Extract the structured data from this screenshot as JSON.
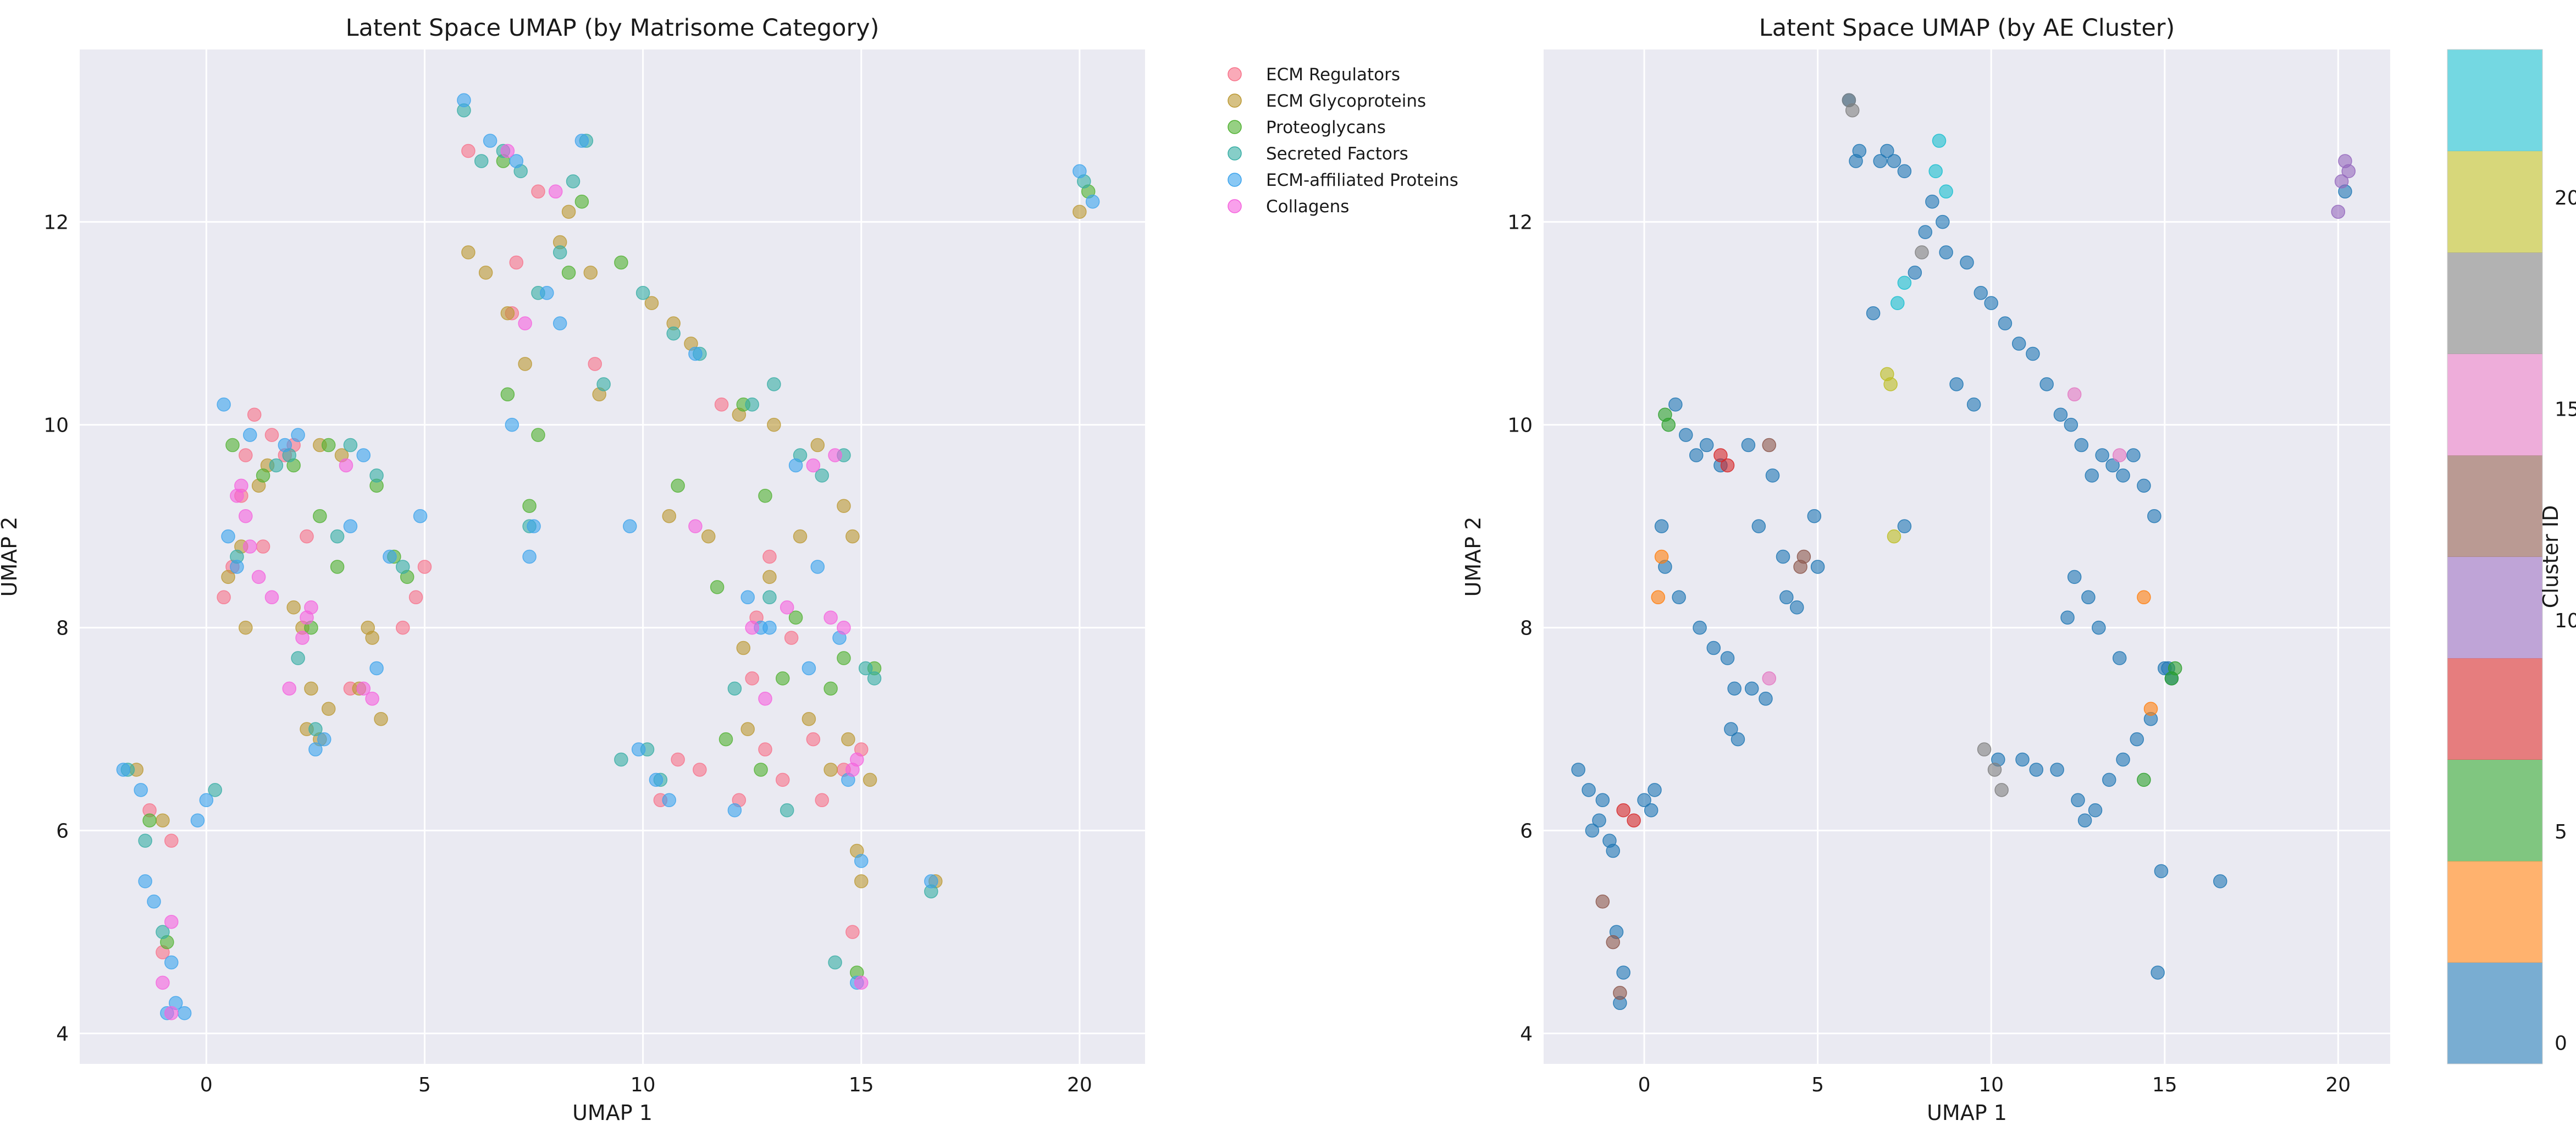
{
  "chart_data": [
    {
      "type": "scatter",
      "title": "Latent Space UMAP (by Matrisome Category)",
      "xlabel": "UMAP 1",
      "ylabel": "UMAP 2",
      "xlim": [
        -2.9,
        21.5
      ],
      "ylim": [
        3.7,
        13.7
      ],
      "xticks": [
        0,
        5,
        10,
        15,
        20
      ],
      "yticks": [
        4,
        6,
        8,
        10,
        12
      ],
      "grid": true,
      "legend_position": "outside-right",
      "series": [
        {
          "name": "ECM Regulators",
          "color": "#f77189",
          "x": [
            1.1,
            1.5,
            0.8,
            1.8,
            0.6,
            2.0,
            12.2,
            12.8,
            13.2,
            14.6,
            12.6,
            13.9,
            7.1,
            7.6,
            10.4,
            10.8,
            11.3,
            14.1,
            0.4,
            4.5,
            5.0,
            -1.0,
            -0.8,
            14.8,
            2.3,
            12.5,
            13.4,
            1.3,
            15.0,
            4.8,
            6.0,
            7.0,
            8.9,
            11.8,
            12.9,
            -1.3,
            0.9,
            3.3
          ],
          "y": [
            10.1,
            9.9,
            9.3,
            9.7,
            8.6,
            9.8,
            6.3,
            6.8,
            6.5,
            6.6,
            8.1,
            6.9,
            11.6,
            12.3,
            6.3,
            6.7,
            6.6,
            6.3,
            8.3,
            8.0,
            8.6,
            4.8,
            5.9,
            5.0,
            8.9,
            7.5,
            7.9,
            8.8,
            6.8,
            8.3,
            12.7,
            11.1,
            10.6,
            10.2,
            8.7,
            6.2,
            9.7,
            7.4
          ]
        },
        {
          "name": "ECM Glycoproteins",
          "color": "#bb9832",
          "x": [
            0.5,
            0.8,
            1.4,
            2.2,
            2.6,
            2.8,
            3.1,
            3.5,
            2.3,
            2.6,
            3.8,
            6.0,
            6.4,
            6.9,
            7.3,
            8.1,
            8.3,
            8.8,
            10.2,
            10.7,
            11.1,
            12.2,
            13.0,
            14.0,
            14.6,
            14.8,
            15.0,
            15.2,
            14.9,
            13.6,
            12.9,
            12.4,
            13.8,
            14.3,
            -1.6,
            -1.0,
            0.9,
            1.2,
            2.0,
            2.4,
            3.7,
            4.0,
            9.0,
            10.6,
            11.5,
            12.3,
            14.7,
            16.7,
            20.0
          ],
          "y": [
            8.5,
            8.8,
            9.6,
            8.0,
            9.8,
            7.2,
            9.7,
            7.4,
            7.0,
            6.9,
            7.9,
            11.7,
            11.5,
            11.1,
            10.6,
            11.8,
            12.1,
            11.5,
            11.2,
            11.0,
            10.8,
            10.1,
            10.0,
            9.8,
            9.2,
            8.9,
            5.5,
            6.5,
            5.8,
            8.9,
            8.5,
            7.0,
            7.1,
            6.6,
            6.6,
            6.1,
            8.0,
            9.4,
            8.2,
            7.4,
            8.0,
            7.1,
            10.3,
            9.1,
            8.9,
            7.8,
            6.9,
            5.5,
            12.1
          ]
        },
        {
          "name": "Proteoglycans",
          "color": "#50b131",
          "x": [
            0.6,
            1.3,
            2.0,
            2.8,
            3.0,
            3.9,
            4.3,
            6.9,
            7.4,
            7.6,
            8.3,
            9.5,
            11.7,
            12.3,
            12.8,
            13.5,
            14.3,
            14.6,
            15.3,
            14.9,
            12.7,
            11.9,
            10.8,
            13.2,
            -1.3,
            -0.9,
            2.4,
            2.6,
            4.6,
            6.8,
            8.6,
            20.2
          ],
          "y": [
            9.8,
            9.5,
            9.6,
            9.8,
            8.6,
            9.4,
            8.7,
            10.3,
            9.2,
            9.9,
            11.5,
            11.6,
            8.4,
            10.2,
            9.3,
            8.1,
            7.4,
            7.7,
            7.6,
            4.6,
            6.6,
            6.9,
            9.4,
            7.5,
            6.1,
            4.9,
            8.0,
            9.1,
            8.5,
            12.6,
            12.2,
            12.3
          ]
        },
        {
          "name": "Secreted Factors",
          "color": "#36ada4",
          "x": [
            5.9,
            6.8,
            7.2,
            7.6,
            8.1,
            8.4,
            9.1,
            10.0,
            10.7,
            11.3,
            12.5,
            13.0,
            13.6,
            14.1,
            14.6,
            15.1,
            15.3,
            12.9,
            12.1,
            10.1,
            10.4,
            3.3,
            3.9,
            4.5,
            -1.8,
            -1.4,
            -1.0,
            0.2,
            1.6,
            2.1,
            2.5,
            7.4,
            8.7,
            9.5,
            6.3,
            13.3,
            14.4,
            16.6,
            20.1,
            0.7,
            1.9,
            3.0
          ],
          "y": [
            13.1,
            12.7,
            12.5,
            11.3,
            11.7,
            12.4,
            10.4,
            11.3,
            10.9,
            10.7,
            10.2,
            10.4,
            9.7,
            9.5,
            9.7,
            7.6,
            7.5,
            8.3,
            7.4,
            6.8,
            6.5,
            9.8,
            9.5,
            8.6,
            6.6,
            5.9,
            5.0,
            6.4,
            9.6,
            7.7,
            7.0,
            9.0,
            12.8,
            6.7,
            12.6,
            6.2,
            4.7,
            5.4,
            12.4,
            8.7,
            9.7,
            8.9
          ]
        },
        {
          "name": "ECM-affiliated Proteins",
          "color": "#3ba3ec",
          "x": [
            -1.9,
            -1.5,
            -1.2,
            -0.8,
            -0.7,
            -0.5,
            0.0,
            -0.2,
            0.5,
            0.7,
            1.0,
            1.8,
            2.5,
            2.7,
            3.3,
            3.6,
            4.2,
            4.9,
            5.9,
            6.5,
            7.1,
            7.5,
            7.8,
            8.1,
            8.6,
            9.9,
            10.3,
            10.6,
            11.2,
            12.4,
            12.9,
            13.5,
            14.0,
            14.5,
            14.9,
            15.0,
            16.6,
            20.0,
            20.3,
            -1.4,
            -0.9,
            0.4,
            2.1,
            3.9,
            7.0,
            7.4,
            9.7,
            12.7,
            13.8,
            14.7,
            12.1
          ],
          "y": [
            6.6,
            6.4,
            5.3,
            4.7,
            4.3,
            4.2,
            6.3,
            6.1,
            8.9,
            8.6,
            9.9,
            9.8,
            6.8,
            6.9,
            9.0,
            9.7,
            8.7,
            9.1,
            13.2,
            12.8,
            12.6,
            9.0,
            11.3,
            11.0,
            12.8,
            6.8,
            6.5,
            6.3,
            10.7,
            8.3,
            8.0,
            9.6,
            8.6,
            7.9,
            4.5,
            5.7,
            5.5,
            12.5,
            12.2,
            5.5,
            4.2,
            10.2,
            9.9,
            7.6,
            10.0,
            8.7,
            9.0,
            8.0,
            7.6,
            6.5,
            6.2
          ]
        },
        {
          "name": "Collagens",
          "color": "#f561dd",
          "x": [
            0.7,
            0.9,
            1.0,
            1.5,
            1.9,
            2.2,
            2.3,
            2.4,
            3.2,
            3.6,
            3.8,
            7.3,
            8.0,
            11.2,
            12.5,
            13.3,
            13.9,
            14.3,
            14.6,
            14.9,
            15.0,
            12.8,
            -0.8,
            -1.0,
            -0.8,
            0.8,
            1.2,
            14.4,
            14.8,
            6.9
          ],
          "y": [
            9.3,
            9.1,
            8.8,
            8.3,
            7.4,
            7.9,
            8.1,
            8.2,
            9.6,
            7.4,
            7.3,
            11.0,
            12.3,
            9.0,
            8.0,
            8.2,
            9.6,
            8.1,
            8.0,
            6.7,
            4.5,
            7.3,
            4.2,
            4.5,
            5.1,
            9.4,
            8.5,
            9.7,
            6.6,
            12.7
          ]
        }
      ]
    },
    {
      "type": "scatter",
      "title": "Latent Space UMAP (by AE Cluster)",
      "xlabel": "UMAP 1",
      "ylabel": "UMAP 2",
      "xlim": [
        -2.9,
        21.5
      ],
      "ylim": [
        3.7,
        13.7
      ],
      "xticks": [
        0,
        5,
        10,
        15,
        20
      ],
      "yticks": [
        4,
        6,
        8,
        10,
        12
      ],
      "grid": true,
      "colorbar": {
        "label": "Cluster ID",
        "ticks": [
          0,
          5,
          10,
          15,
          20
        ],
        "range": [
          0,
          23
        ],
        "colormap": "tab10"
      },
      "clusters": [
        {
          "id": 0,
          "color": "#1f77b4",
          "x": [
            -1.9,
            -1.6,
            -1.3,
            -1.0,
            -0.8,
            -0.6,
            0.0,
            0.2,
            0.5,
            0.6,
            0.9,
            1.2,
            1.5,
            1.8,
            2.2,
            2.5,
            2.7,
            3.0,
            3.3,
            3.7,
            4.0,
            4.4,
            4.9,
            5.0,
            5.9,
            6.2,
            6.6,
            7.0,
            7.2,
            7.5,
            7.8,
            8.1,
            8.3,
            8.7,
            9.0,
            9.3,
            9.7,
            10.0,
            10.4,
            10.8,
            11.2,
            11.6,
            12.0,
            12.3,
            12.6,
            12.9,
            13.2,
            13.5,
            13.8,
            14.1,
            14.4,
            14.7,
            15.0,
            15.2,
            14.9,
            16.6,
            20.2,
            -1.5,
            -1.2,
            -0.9,
            -0.7,
            0.3,
            1.0,
            1.6,
            2.0,
            2.4,
            2.6,
            3.1,
            3.5,
            4.1,
            6.1,
            6.8,
            7.5,
            8.6,
            9.5,
            10.2,
            10.9,
            11.3,
            11.9,
            12.5,
            12.7,
            13.0,
            13.4,
            13.8,
            14.2,
            14.6,
            15.1,
            12.2,
            12.4,
            12.8,
            13.1,
            13.7,
            14.8
          ],
          "y": [
            6.6,
            6.4,
            6.1,
            5.9,
            5.0,
            4.6,
            6.3,
            6.2,
            9.0,
            8.6,
            10.2,
            9.9,
            9.7,
            9.8,
            9.6,
            7.0,
            6.9,
            9.8,
            9.0,
            9.5,
            8.7,
            8.2,
            9.1,
            8.6,
            13.2,
            12.7,
            11.1,
            12.7,
            12.6,
            9.0,
            11.5,
            11.9,
            12.2,
            11.7,
            10.4,
            11.6,
            11.3,
            11.2,
            11.0,
            10.8,
            10.7,
            10.4,
            10.1,
            10.0,
            9.8,
            9.5,
            9.7,
            9.6,
            9.5,
            9.7,
            9.4,
            9.1,
            7.6,
            7.5,
            5.6,
            5.5,
            12.3,
            6.0,
            6.3,
            5.8,
            4.3,
            6.4,
            8.3,
            8.0,
            7.8,
            7.7,
            7.4,
            7.4,
            7.3,
            8.3,
            12.6,
            12.6,
            12.5,
            12.0,
            10.2,
            6.7,
            6.7,
            6.6,
            6.6,
            6.3,
            6.1,
            6.2,
            6.5,
            6.7,
            6.9,
            7.1,
            7.6,
            8.1,
            8.5,
            8.3,
            8.0,
            7.7,
            4.6
          ]
        },
        {
          "id": 1,
          "color": "#ff7f0e",
          "x": [
            0.4,
            0.5,
            14.4,
            14.6
          ],
          "y": [
            8.3,
            8.7,
            8.3,
            7.2
          ]
        },
        {
          "id": 3,
          "color": "#2ca02c",
          "x": [
            0.6,
            0.7,
            14.4,
            15.3,
            15.2
          ],
          "y": [
            10.1,
            10.0,
            6.5,
            7.6,
            7.5
          ]
        },
        {
          "id": 4,
          "color": "#d62728",
          "x": [
            -0.6,
            -0.3,
            2.2,
            2.4
          ],
          "y": [
            6.2,
            6.1,
            9.7,
            9.6
          ]
        },
        {
          "id": 7,
          "color": "#8c564b",
          "x": [
            -1.2,
            -0.9,
            -0.7,
            4.5,
            4.6,
            3.6
          ],
          "y": [
            5.3,
            4.9,
            4.4,
            8.6,
            8.7,
            9.8
          ]
        },
        {
          "id": 11,
          "color": "#9467bd",
          "x": [
            20.0,
            20.2,
            20.3,
            20.1
          ],
          "y": [
            12.1,
            12.6,
            12.5,
            12.4
          ]
        },
        {
          "id": 15,
          "color": "#e377c2",
          "x": [
            3.6,
            12.4,
            13.7
          ],
          "y": [
            7.5,
            10.3,
            9.7
          ]
        },
        {
          "id": 17,
          "color": "#7f7f7f",
          "x": [
            5.9,
            6.0,
            8.0,
            9.8,
            10.1,
            10.3
          ],
          "y": [
            13.2,
            13.1,
            11.7,
            6.8,
            6.6,
            6.4
          ]
        },
        {
          "id": 19,
          "color": "#bcbd22",
          "x": [
            7.0,
            7.1,
            7.2
          ],
          "y": [
            10.5,
            10.4,
            8.9
          ]
        },
        {
          "id": 21,
          "color": "#17becf",
          "x": [
            7.3,
            7.5,
            8.5,
            8.7,
            8.4
          ],
          "y": [
            11.2,
            11.4,
            12.8,
            12.3,
            12.5
          ]
        }
      ]
    }
  ]
}
